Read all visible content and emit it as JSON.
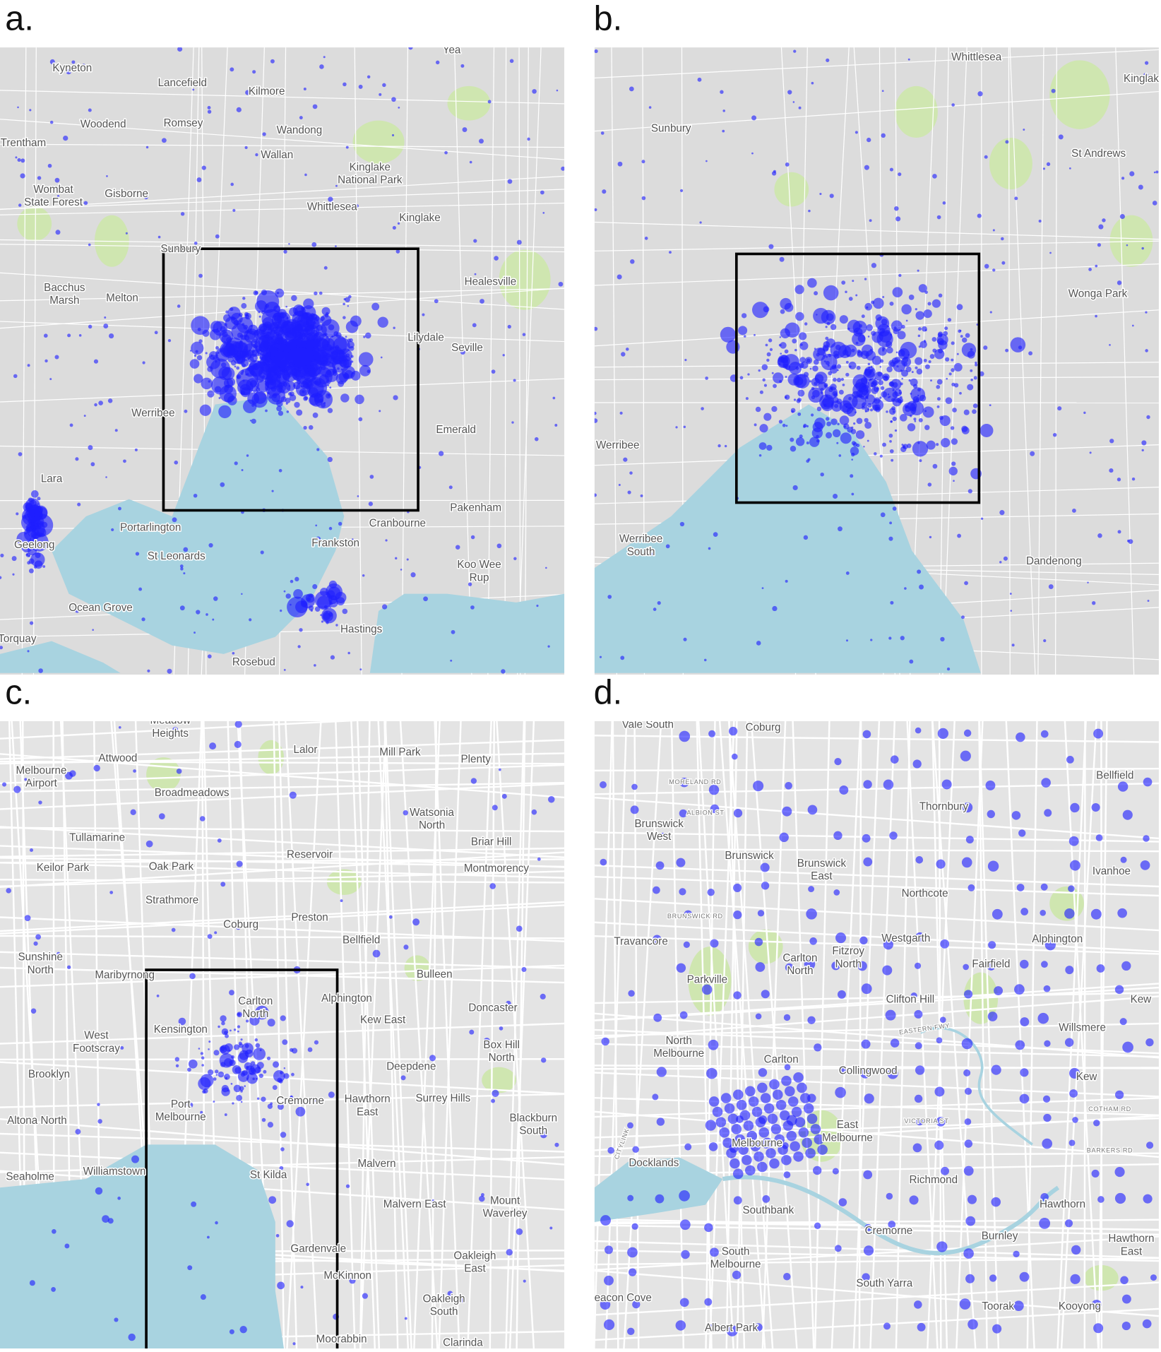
{
  "panels": [
    {
      "label": "a.",
      "places": [
        "Kyneton",
        "Lancefield",
        "Kilmore",
        "Yea",
        "Woodend",
        "Romsey",
        "Wandong",
        "Trentham",
        "Wallan",
        [
          "Kinglake",
          "National Park"
        ],
        [
          "Wombat",
          "State Forest"
        ],
        "Gisborne",
        "Whittlesea",
        "Kinglake",
        "Sunbury",
        "Healesville",
        [
          "Bacchus",
          "Marsh"
        ],
        "Melton",
        "Lilydale",
        "Seville",
        "Werribee",
        "Emerald",
        "Lara",
        "Pakenham",
        "Cranbourne",
        "Portarlington",
        "Geelong",
        "St Leonards",
        "Frankston",
        [
          "Koo Wee",
          "Rup"
        ],
        "Ocean Grove",
        "Hastings",
        "Torquay",
        "Rosebud"
      ]
    },
    {
      "label": "b.",
      "places": [
        "Whittlesea",
        "Kinglake",
        "Sunbury",
        "St Andrews",
        "Wonga Park",
        "Werribee",
        [
          "Werribee",
          "South"
        ],
        "Dandenong"
      ]
    },
    {
      "label": "c.",
      "places": [
        [
          "Meadow",
          "Heights"
        ],
        "Attwood",
        "Lalor",
        "Mill Park",
        "Plenty",
        [
          "Melbourne",
          "Airport"
        ],
        "Broadmeadows",
        [
          "Watsonia",
          "North"
        ],
        "Tullamarine",
        "Briar Hill",
        "Reservoir",
        "Keilor Park",
        "Oak Park",
        "Montmorency",
        "Strathmore",
        "Preston",
        "Coburg",
        "Bellfield",
        [
          "Sunshine",
          "North"
        ],
        "Maribyrnong",
        "Bulleen",
        [
          "Carlton",
          "North"
        ],
        "Alphington",
        "Doncaster",
        "Kensington",
        "Kew East",
        [
          "West",
          "Footscray"
        ],
        [
          "Box Hill",
          "North"
        ],
        "Brooklyn",
        "Deepdene",
        "Surrey Hills",
        [
          "Hawthorn",
          "East"
        ],
        "Cremorne",
        [
          "Port",
          "Melbourne"
        ],
        "Altona North",
        [
          "Blackburn",
          "South"
        ],
        "Seaholme",
        "Williamstown",
        "St Kilda",
        "Malvern",
        [
          "Mount",
          "Waverley"
        ],
        "Malvern East",
        "Gardenvale",
        [
          "Oakleigh",
          "East"
        ],
        "McKinnon",
        [
          "Oakleigh",
          "South"
        ],
        "Moorabbin",
        "Clarinda"
      ]
    },
    {
      "label": "d.",
      "places": [
        "Vale South",
        "Coburg",
        "Bellfield",
        [
          "Brunswick",
          "West"
        ],
        "Thornbury",
        "Brunswick",
        [
          "Brunswick",
          "East"
        ],
        "Ivanhoe",
        "Northcote",
        "Westgarth",
        "Alphington",
        "Travancore",
        [
          "Carlton",
          "North"
        ],
        [
          "Fitzroy",
          "North"
        ],
        "Fairfield",
        "Parkville",
        "Clifton Hill",
        "Kew",
        "Willsmere",
        [
          "North",
          "Melbourne"
        ],
        "Carlton",
        "Collingwood",
        "Kew",
        [
          "East",
          "Melbourne"
        ],
        "Melbourne",
        "Docklands",
        "Richmond",
        "Hawthorn",
        "Southbank",
        "Cremorne",
        "Burnley",
        [
          "South",
          "Melbourne"
        ],
        [
          "Hawthorn",
          "East"
        ],
        "South Yarra",
        "Toorak",
        "Kooyong",
        "Albert Park",
        "Beacon Cove"
      ],
      "roads": [
        "MORELAND RD",
        "ALBION ST",
        "BRUNSWICK RD",
        "VICTORIA ST",
        "EASTERN FWY",
        "CITYLINK",
        "COTHAM RD",
        "BARKERS RD"
      ]
    }
  ]
}
